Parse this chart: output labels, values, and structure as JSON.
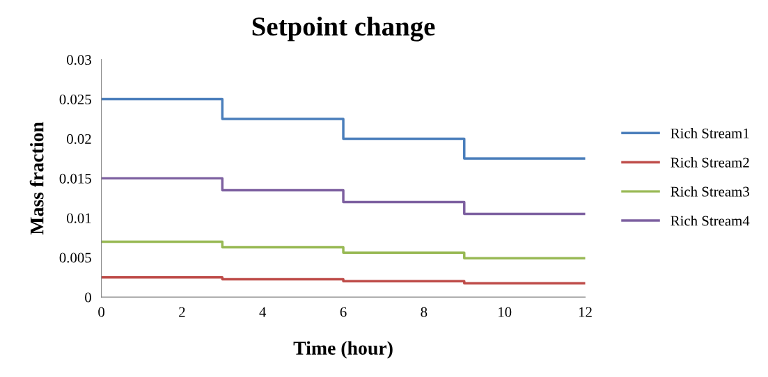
{
  "chart_data": {
    "type": "step",
    "title": "Setpoint change",
    "xlabel": "Time (hour)",
    "ylabel": "Mass fraction",
    "x": [
      0,
      3,
      6,
      9,
      12
    ],
    "series": [
      {
        "name": "Rich Stream1",
        "color": "#4a7ebb",
        "values": [
          0.025,
          0.0225,
          0.02,
          0.0175,
          0.0175
        ]
      },
      {
        "name": "Rich Stream2",
        "color": "#be4b48",
        "values": [
          0.0025,
          0.00225,
          0.002,
          0.00175,
          0.00175
        ]
      },
      {
        "name": "Rich Stream3",
        "color": "#98b954",
        "values": [
          0.007,
          0.0063,
          0.0056,
          0.0049,
          0.0049
        ]
      },
      {
        "name": "Rich Stream4",
        "color": "#7d60a0",
        "values": [
          0.015,
          0.0135,
          0.012,
          0.0105,
          0.0105
        ]
      }
    ],
    "xlim": [
      0,
      12
    ],
    "xticks": [
      0,
      2,
      4,
      6,
      8,
      10,
      12
    ],
    "ylim": [
      0,
      0.03
    ],
    "yticks": [
      0,
      0.005,
      0.01,
      0.015,
      0.02,
      0.025,
      0.03
    ],
    "grid": false,
    "legend": "right",
    "line_style": "solid",
    "marker": "none"
  }
}
